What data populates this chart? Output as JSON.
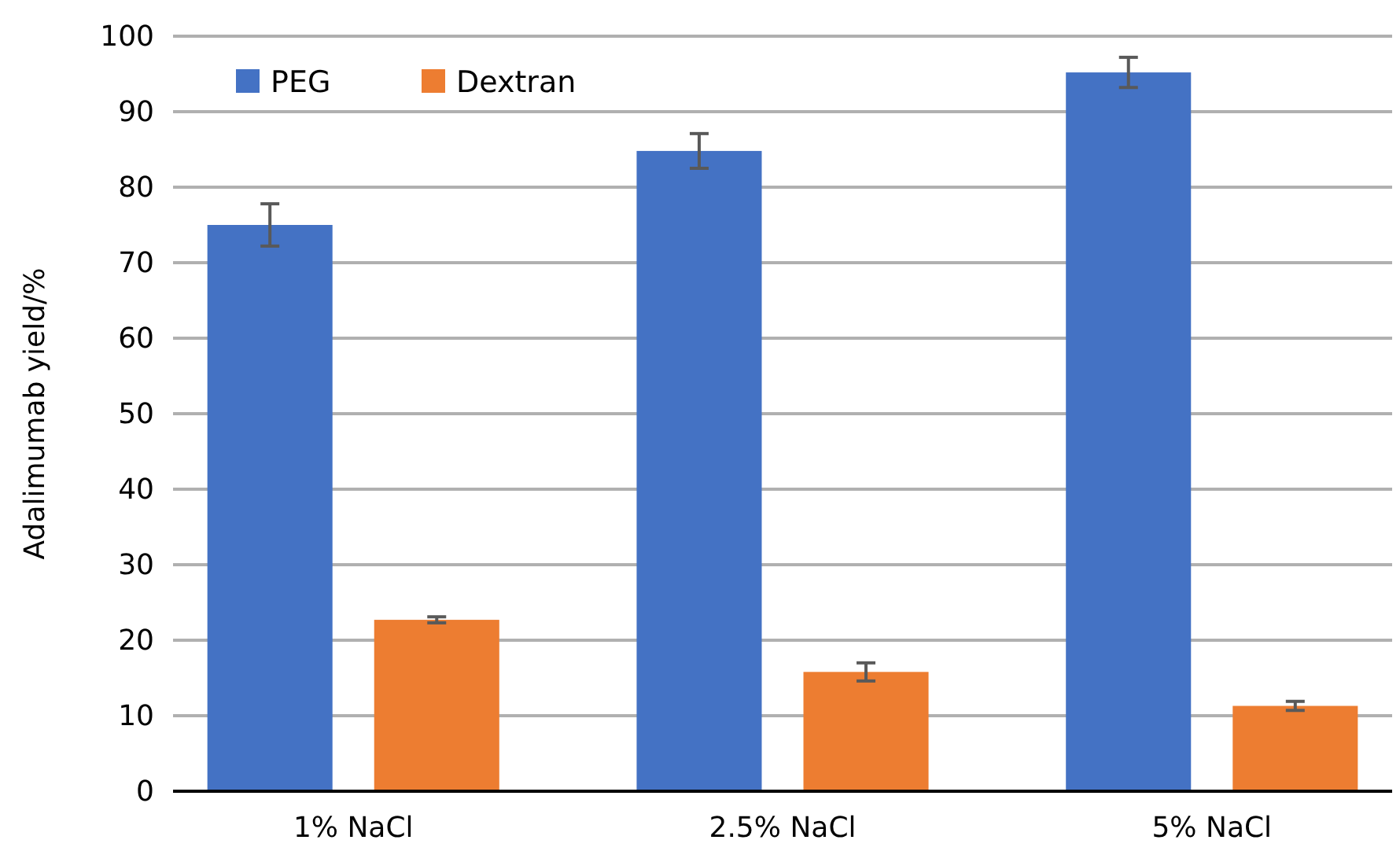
{
  "chart_data": {
    "type": "bar",
    "ylabel": "Adalimumab yield/%",
    "categories": [
      "1% NaCl",
      "2.5% NaCl",
      "5% NaCl"
    ],
    "series": [
      {
        "name": "PEG",
        "color": "#4472c4",
        "values": [
          75.0,
          84.8,
          95.2
        ],
        "errors": [
          2.8,
          2.3,
          2.0
        ]
      },
      {
        "name": "Dextran",
        "color": "#ed7d31",
        "values": [
          22.7,
          15.8,
          11.3
        ],
        "errors": [
          0.4,
          1.2,
          0.6
        ]
      }
    ],
    "ylim": [
      0,
      100
    ],
    "yticks": [
      0,
      10,
      20,
      30,
      40,
      50,
      60,
      70,
      80,
      90,
      100
    ],
    "grid": "y",
    "legend": "top left"
  }
}
